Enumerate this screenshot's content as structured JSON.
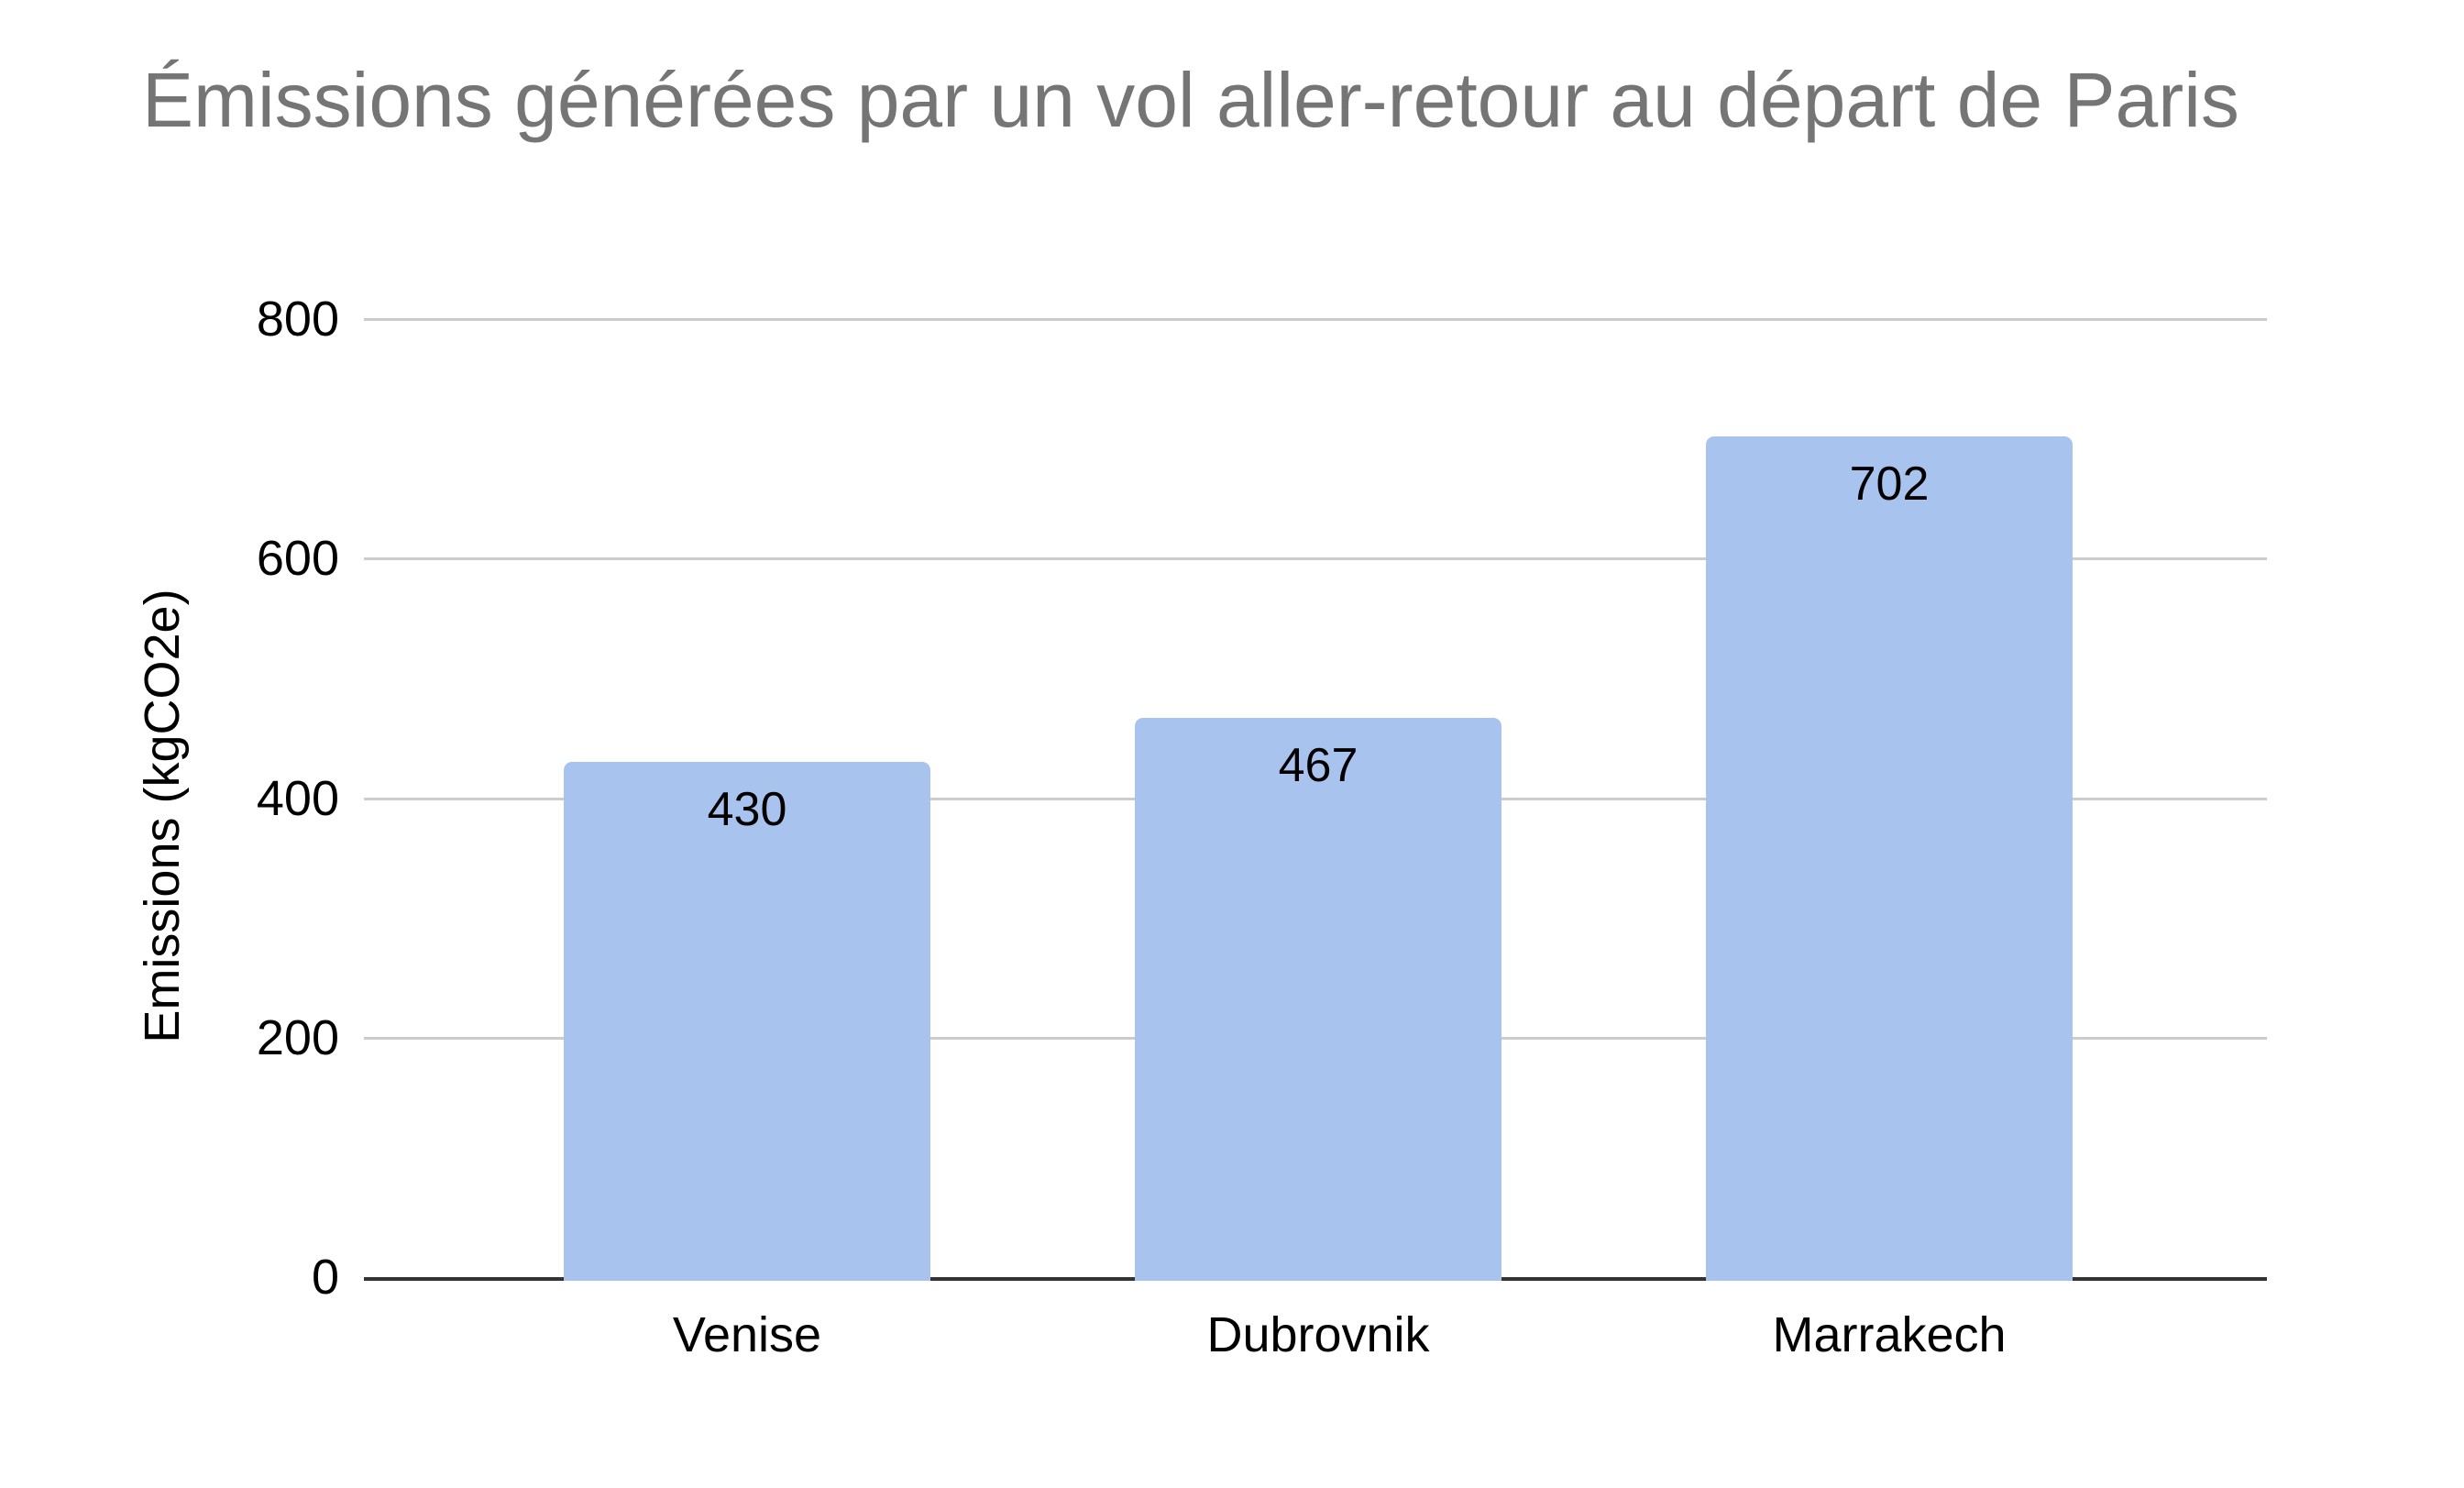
{
  "chart_data": {
    "type": "bar",
    "title": "Émissions générées par un vol aller-retour au départ de Paris",
    "categories": [
      "Venise",
      "Dubrovnik",
      "Marrakech"
    ],
    "values": [
      430,
      467,
      702
    ],
    "data_labels": [
      "430",
      "467",
      "702"
    ],
    "xlabel": "",
    "ylabel": "Emissions (kgCO2e)",
    "ylim": [
      0,
      800
    ],
    "yticks": [
      0,
      200,
      400,
      600,
      800
    ],
    "grid": true,
    "legend_position": "none",
    "colors": {
      "bar_fill": "#a9c3ef",
      "title_text": "#757575",
      "axis_text": "#000000",
      "gridline": "#cccccc",
      "axis_line": "#333333",
      "background": "#ffffff"
    }
  }
}
